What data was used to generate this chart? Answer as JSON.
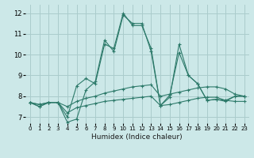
{
  "title": "",
  "xlabel": "Humidex (Indice chaleur)",
  "bg_color": "#cce8e8",
  "grid_color": "#aacccc",
  "line_color": "#2d7a6a",
  "xlim": [
    -0.5,
    23.5
  ],
  "ylim": [
    6.7,
    12.4
  ],
  "xticks": [
    0,
    1,
    2,
    3,
    4,
    5,
    6,
    7,
    8,
    9,
    10,
    11,
    12,
    13,
    14,
    15,
    16,
    17,
    18,
    19,
    20,
    21,
    22,
    23
  ],
  "yticks": [
    7,
    8,
    9,
    10,
    11,
    12
  ],
  "series": [
    [
      7.7,
      7.5,
      7.7,
      7.7,
      7.0,
      8.5,
      8.85,
      8.6,
      10.5,
      10.3,
      12.0,
      11.4,
      11.4,
      10.3,
      7.55,
      8.05,
      10.1,
      9.0,
      8.6,
      7.8,
      7.85,
      7.8,
      8.0,
      8.0
    ],
    [
      7.7,
      7.5,
      7.7,
      7.7,
      6.75,
      6.9,
      8.3,
      8.7,
      10.7,
      10.15,
      11.9,
      11.5,
      11.5,
      10.15,
      7.55,
      7.95,
      10.5,
      9.0,
      8.6,
      7.8,
      7.85,
      7.75,
      8.0,
      8.0
    ],
    [
      7.7,
      7.6,
      7.7,
      7.7,
      7.5,
      7.75,
      7.9,
      8.0,
      8.15,
      8.25,
      8.35,
      8.45,
      8.5,
      8.55,
      8.0,
      8.1,
      8.2,
      8.3,
      8.4,
      8.45,
      8.45,
      8.35,
      8.1,
      8.0
    ],
    [
      7.7,
      7.6,
      7.7,
      7.7,
      7.2,
      7.45,
      7.55,
      7.65,
      7.75,
      7.8,
      7.85,
      7.9,
      7.95,
      8.0,
      7.55,
      7.6,
      7.7,
      7.8,
      7.9,
      7.95,
      7.95,
      7.8,
      7.75,
      7.75
    ]
  ]
}
